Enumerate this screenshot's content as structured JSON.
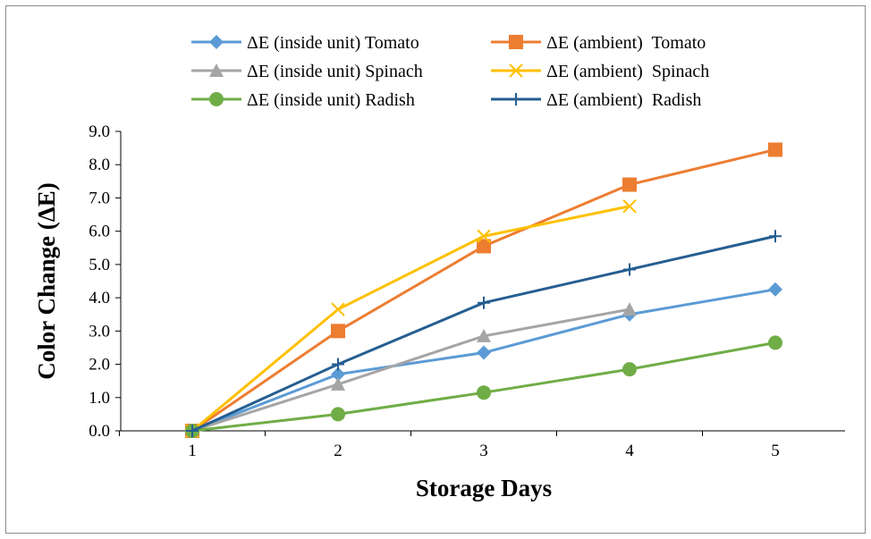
{
  "chart_data": {
    "type": "line",
    "title": "",
    "xlabel": "Storage Days",
    "ylabel": "Color Change (ΔE)",
    "x": [
      1,
      2,
      3,
      4,
      5
    ],
    "x_tick_labels": [
      "1",
      "2",
      "3",
      "4",
      "5"
    ],
    "ylim": [
      0,
      9
    ],
    "y_tick_labels": [
      "0.0",
      "1.0",
      "2.0",
      "3.0",
      "4.0",
      "5.0",
      "6.0",
      "7.0",
      "8.0",
      "9.0"
    ],
    "grid": false,
    "legend_position": "top",
    "series": [
      {
        "name": "ΔE (inside unit) Tomato",
        "color": "#5b9bd5",
        "marker": "diamond",
        "values": [
          0,
          1.7,
          2.35,
          3.5,
          4.25
        ]
      },
      {
        "name": "ΔE (ambient)  Tomato",
        "color": "#ed7d31",
        "marker": "square",
        "values": [
          0,
          3.0,
          5.55,
          7.4,
          8.45
        ]
      },
      {
        "name": "ΔE (inside unit) Spinach",
        "color": "#a5a5a5",
        "marker": "triangle",
        "values": [
          0,
          1.4,
          2.85,
          3.65,
          null
        ]
      },
      {
        "name": "ΔE (ambient)  Spinach",
        "color": "#ffc000",
        "marker": "x",
        "values": [
          0,
          3.65,
          5.85,
          6.75,
          null
        ]
      },
      {
        "name": "ΔE (inside unit) Radish",
        "color": "#70ad47",
        "marker": "circle",
        "values": [
          0,
          0.5,
          1.15,
          1.85,
          2.65
        ]
      },
      {
        "name": "ΔE (ambient)  Radish",
        "color": "#255e91",
        "marker": "plus",
        "values": [
          0,
          2.0,
          3.85,
          4.85,
          5.85
        ]
      }
    ]
  }
}
